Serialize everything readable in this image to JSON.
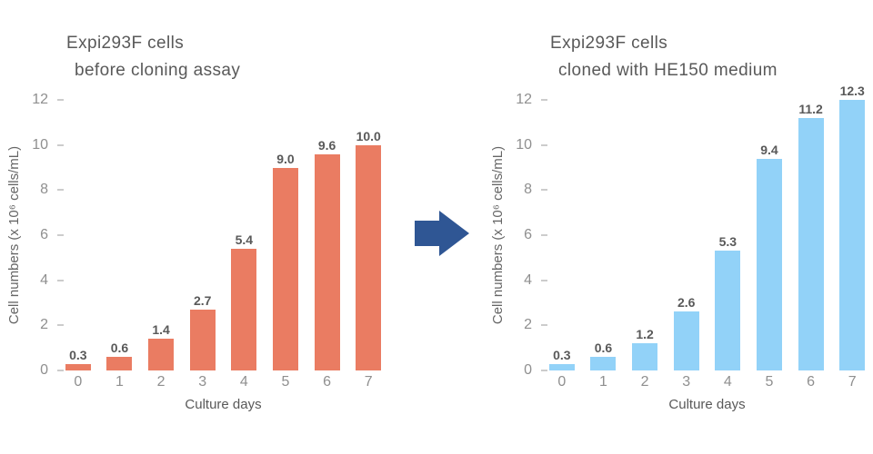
{
  "figure": {
    "background_color": "#FFFFFF",
    "arrow": {
      "icon": "right-arrow",
      "color": "#2F5694"
    }
  },
  "chart_data": [
    {
      "type": "bar",
      "title_line1": "Expi293F cells",
      "title_line2": "before cloning assay",
      "categories": [
        "0",
        "1",
        "2",
        "3",
        "4",
        "5",
        "6",
        "7"
      ],
      "values": [
        0.3,
        0.6,
        1.4,
        2.7,
        5.4,
        9.0,
        9.6,
        10.0
      ],
      "value_labels": [
        "0.3",
        "0.6",
        "1.4",
        "2.7",
        "5.4",
        "9.0",
        "9.6",
        "10.0"
      ],
      "xlabel": "Culture days",
      "ylabel": "Cell numbers (x 10⁶ cells/mL)",
      "ylim": [
        0,
        12
      ],
      "yticks": [
        0,
        2,
        4,
        6,
        8,
        10,
        12
      ],
      "bar_color": "#EA7C62",
      "grid": false,
      "legend": "none"
    },
    {
      "type": "bar",
      "title_line1": "Expi293F cells",
      "title_line2": "cloned with HE150 medium",
      "categories": [
        "0",
        "1",
        "2",
        "3",
        "4",
        "5",
        "6",
        "7"
      ],
      "values": [
        0.3,
        0.6,
        1.2,
        2.6,
        5.3,
        9.4,
        11.2,
        12.3
      ],
      "value_labels": [
        "0.3",
        "0.6",
        "1.2",
        "2.6",
        "5.3",
        "9.4",
        "11.2",
        "12.3"
      ],
      "xlabel": "Culture days",
      "ylabel": "Cell numbers (x 10⁶ cells/mL)",
      "ylim": [
        0,
        12
      ],
      "yticks": [
        0,
        2,
        4,
        6,
        8,
        10,
        12
      ],
      "bar_color": "#92D2F8",
      "grid": false,
      "legend": "none"
    }
  ]
}
